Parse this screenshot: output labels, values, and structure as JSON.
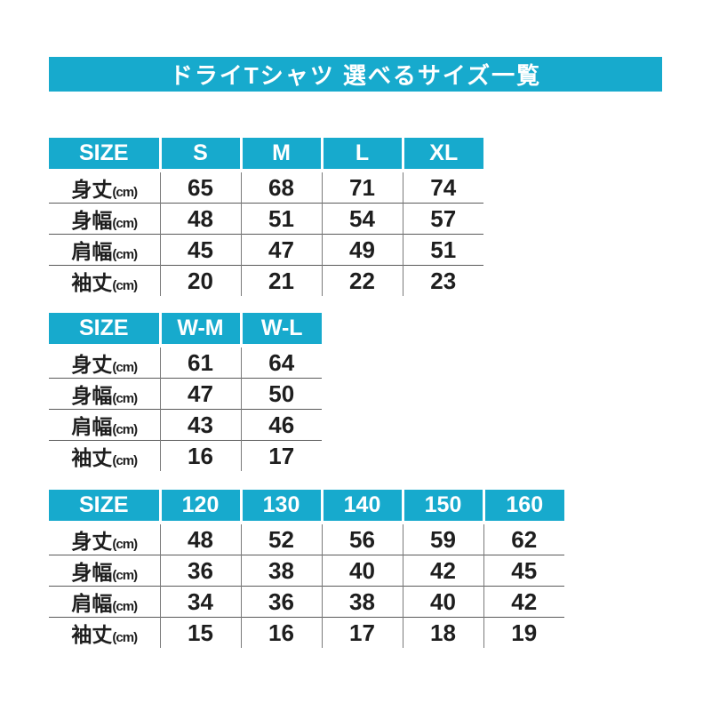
{
  "page": {
    "title": "ドライTシャツ 選べるサイズ一覧"
  },
  "colors": {
    "accent": "#17aacd",
    "header_text": "#ffffff",
    "body_text": "#1e1e1e",
    "grid_line": "#595959",
    "background": "#ffffff"
  },
  "chart_data": [
    {
      "type": "table",
      "name": "adult-sizes",
      "columns": [
        "SIZE",
        "S",
        "M",
        "L",
        "XL"
      ],
      "rows": [
        {
          "label": "身丈",
          "unit": "(cm)",
          "values": [
            "65",
            "68",
            "71",
            "74"
          ]
        },
        {
          "label": "身幅",
          "unit": "(cm)",
          "values": [
            "48",
            "51",
            "54",
            "57"
          ]
        },
        {
          "label": "肩幅",
          "unit": "(cm)",
          "values": [
            "45",
            "47",
            "49",
            "51"
          ]
        },
        {
          "label": "袖丈",
          "unit": "(cm)",
          "values": [
            "20",
            "21",
            "22",
            "23"
          ]
        }
      ]
    },
    {
      "type": "table",
      "name": "womens-sizes",
      "columns": [
        "SIZE",
        "W-M",
        "W-L"
      ],
      "rows": [
        {
          "label": "身丈",
          "unit": "(cm)",
          "values": [
            "61",
            "64"
          ]
        },
        {
          "label": "身幅",
          "unit": "(cm)",
          "values": [
            "47",
            "50"
          ]
        },
        {
          "label": "肩幅",
          "unit": "(cm)",
          "values": [
            "43",
            "46"
          ]
        },
        {
          "label": "袖丈",
          "unit": "(cm)",
          "values": [
            "16",
            "17"
          ]
        }
      ]
    },
    {
      "type": "table",
      "name": "kids-sizes",
      "columns": [
        "SIZE",
        "120",
        "130",
        "140",
        "150",
        "160"
      ],
      "rows": [
        {
          "label": "身丈",
          "unit": "(cm)",
          "values": [
            "48",
            "52",
            "56",
            "59",
            "62"
          ]
        },
        {
          "label": "身幅",
          "unit": "(cm)",
          "values": [
            "36",
            "38",
            "40",
            "42",
            "45"
          ]
        },
        {
          "label": "肩幅",
          "unit": "(cm)",
          "values": [
            "34",
            "36",
            "38",
            "40",
            "42"
          ]
        },
        {
          "label": "袖丈",
          "unit": "(cm)",
          "values": [
            "15",
            "16",
            "17",
            "18",
            "19"
          ]
        }
      ]
    }
  ]
}
